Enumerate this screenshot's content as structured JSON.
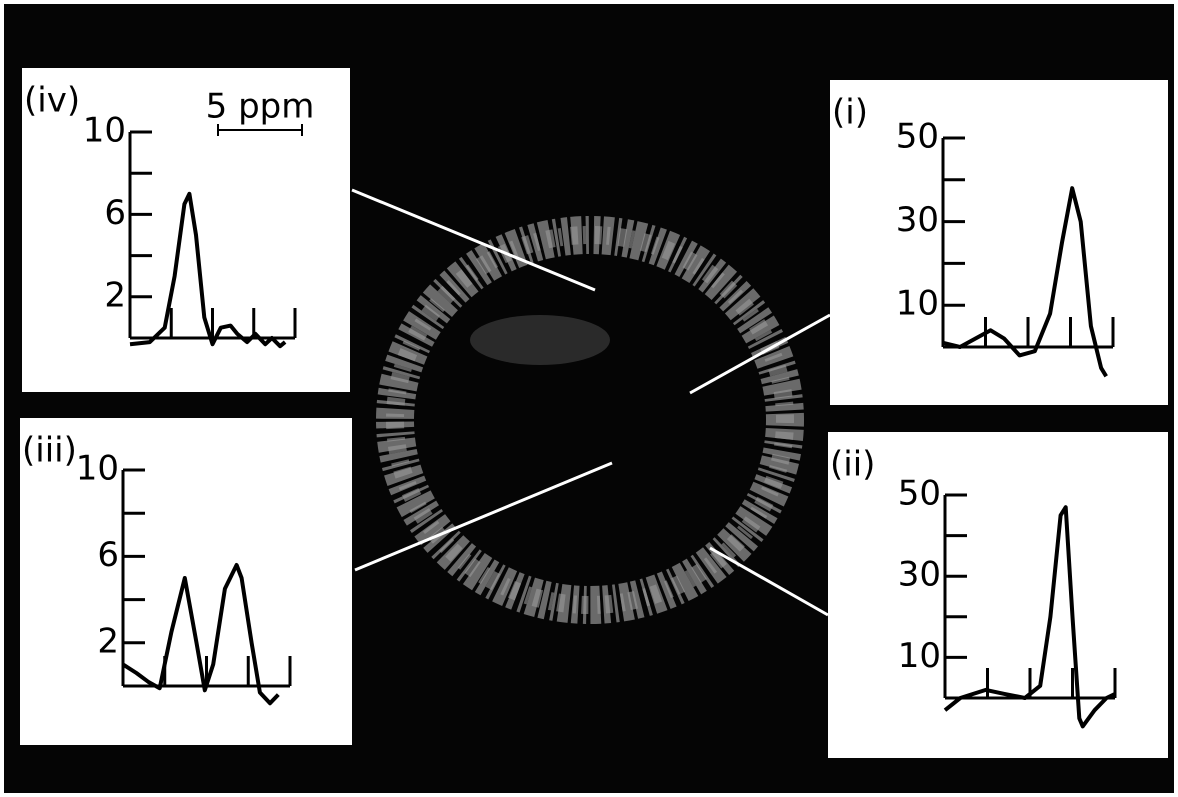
{
  "chart_data": [
    {
      "type": "line",
      "label": "(i)",
      "x": [
        0,
        1,
        1.9,
        2.8,
        3.6,
        4.5,
        5.4,
        6.3,
        7,
        7.6,
        8.1,
        8.7,
        9.3,
        9.6
      ],
      "values": [
        1,
        0,
        2,
        4,
        2,
        -2,
        -1,
        8,
        25,
        38,
        30,
        5,
        -5,
        -7
      ],
      "xlim": [
        0,
        10
      ],
      "xticks": [
        2.5,
        5,
        7.5,
        10
      ],
      "ylim": [
        0,
        50
      ],
      "yticks": [
        10,
        30,
        50
      ],
      "yminorticks": [
        20,
        40
      ],
      "color": "#000000"
    },
    {
      "type": "line",
      "label": "(ii)",
      "x": [
        0,
        0.9,
        2.4,
        3.5,
        4.7,
        5.6,
        6.2,
        6.8,
        7.1,
        7.5,
        7.9,
        8.1,
        8.8,
        9.5,
        10
      ],
      "values": [
        -3,
        0,
        2,
        1,
        0,
        3,
        20,
        45,
        47,
        20,
        -5,
        -7,
        -3,
        0,
        1
      ],
      "xlim": [
        0,
        10
      ],
      "xticks": [
        2.5,
        5,
        7.5,
        10
      ],
      "ylim": [
        0,
        50
      ],
      "yticks": [
        10,
        30,
        50
      ],
      "yminorticks": [
        20,
        40
      ],
      "color": "#000000"
    },
    {
      "type": "line",
      "label": "(iii)",
      "x": [
        0,
        0.8,
        1.5,
        2.2,
        2.9,
        3.7,
        4.4,
        4.9,
        5.4,
        6.1,
        6.8,
        7.1,
        7.7,
        8.2,
        8.8,
        9.3
      ],
      "values": [
        1,
        0.6,
        0.2,
        -0.1,
        2.5,
        5,
        2,
        -0.2,
        1,
        4.5,
        5.6,
        5,
        2,
        -0.3,
        -0.8,
        -0.4
      ],
      "xlim": [
        0,
        10
      ],
      "xticks": [
        2.5,
        5,
        7.5,
        10
      ],
      "ylim": [
        0,
        10
      ],
      "yticks": [
        2,
        6,
        10
      ],
      "yminorticks": [
        4,
        8
      ],
      "color": "#000000"
    },
    {
      "type": "line",
      "label": "(iv)",
      "annotation": "5 ppm",
      "x": [
        0,
        1.2,
        2.1,
        2.7,
        3.3,
        3.6,
        4.0,
        4.5,
        5.0,
        5.5,
        6.1,
        6.5,
        7.1,
        7.6,
        8.2,
        8.6,
        9.1,
        9.4
      ],
      "values": [
        -0.3,
        -0.2,
        0.5,
        3,
        6.5,
        7,
        5,
        1,
        -0.3,
        0.5,
        0.6,
        0.2,
        -0.2,
        0.2,
        -0.3,
        0,
        -0.4,
        -0.2
      ],
      "xlim": [
        0,
        10
      ],
      "xticks": [
        2.5,
        5,
        7.5,
        10
      ],
      "ylim": [
        0,
        10
      ],
      "yticks": [
        2,
        6,
        10
      ],
      "yminorticks": [
        4,
        8
      ],
      "color": "#000000"
    }
  ]
}
